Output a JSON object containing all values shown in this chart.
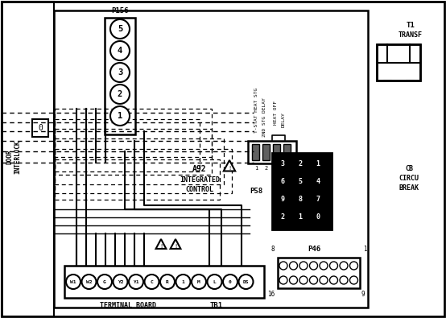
{
  "bg_color": "#ffffff",
  "line_color": "#000000",
  "p156_label": "P156",
  "p156_pins": [
    "5",
    "4",
    "3",
    "2",
    "1"
  ],
  "a92_label": "A92",
  "a92_sublabel": "INTEGRATED\nCONTROL",
  "connector_labels_rot": [
    "T-STAT HEAT STG",
    "2ND STG DELAY",
    "HEAT OFF",
    "DELAY"
  ],
  "p58_label": "P58",
  "p58_pins": [
    [
      "3",
      "2",
      "1"
    ],
    [
      "6",
      "5",
      "4"
    ],
    [
      "9",
      "8",
      "7"
    ],
    [
      "2",
      "1",
      "0"
    ]
  ],
  "p46_label": "P46",
  "tb1_label": "TB1",
  "terminal_board_label": "TERMINAL BOARD",
  "tb_pins": [
    "W1",
    "W2",
    "G",
    "Y2",
    "Y1",
    "C",
    "R",
    "1",
    "M",
    "L",
    "0",
    "DS"
  ],
  "door_interlock_label": "DOOR\nINTERLOCK",
  "t1_label": "T1\nTRANSF",
  "cb_label": "CB\nCIRCU\nBREAK"
}
